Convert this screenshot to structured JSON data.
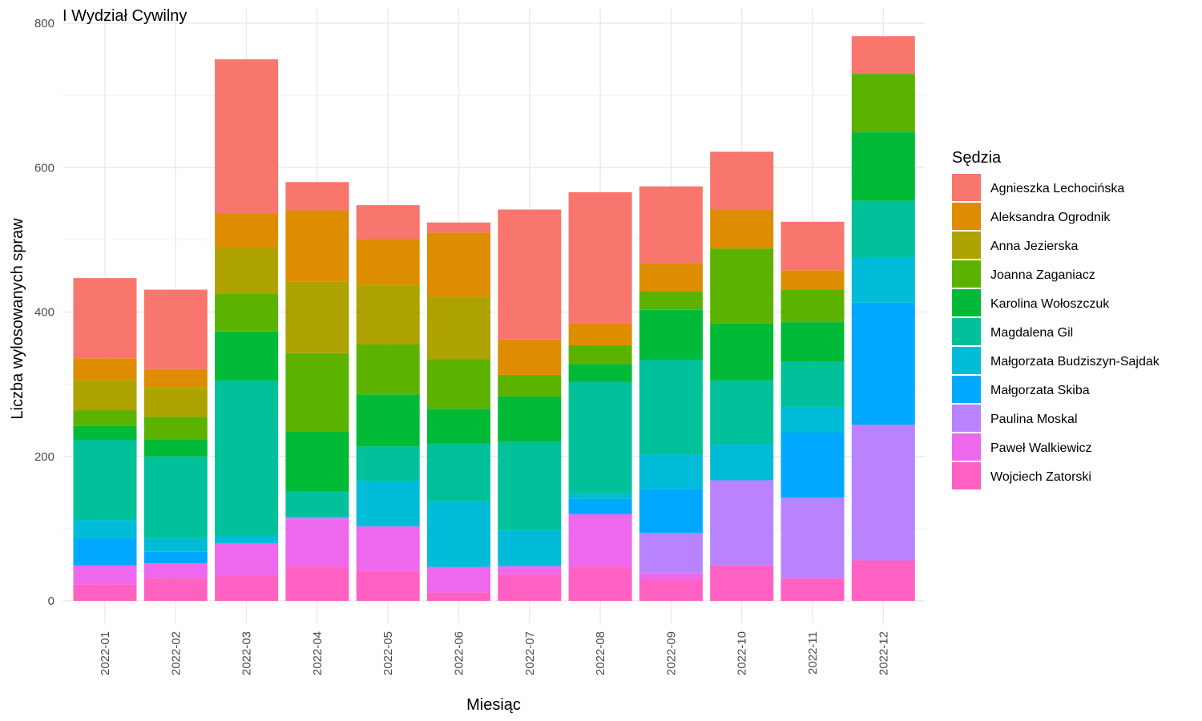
{
  "chart_data": {
    "type": "bar",
    "stacked": true,
    "title": "I Wydział Cywilny",
    "xlabel": "Miesiąc",
    "ylabel": "Liczba wylosowanych spraw",
    "ylim": [
      0,
      800
    ],
    "yticks": [
      0,
      200,
      400,
      600,
      800
    ],
    "grid": true,
    "legend_title": "Sędzia",
    "legend_position": "right",
    "categories": [
      "2022-01",
      "2022-02",
      "2022-03",
      "2022-04",
      "2022-05",
      "2022-06",
      "2022-07",
      "2022-08",
      "2022-09",
      "2022-10",
      "2022-11",
      "2022-12"
    ],
    "series": [
      {
        "name": "Wojciech Zatorski",
        "color": "#FF61C3",
        "values": [
          23,
          32,
          35,
          47,
          42,
          12,
          37,
          47,
          30,
          49,
          31,
          56
        ]
      },
      {
        "name": "Paweł Walkiewicz",
        "color": "#ED68ED",
        "values": [
          26,
          20,
          45,
          66,
          61,
          35,
          11,
          73,
          8,
          0,
          0,
          0
        ]
      },
      {
        "name": "Paulina Moskal",
        "color": "#B983FF",
        "values": [
          0,
          0,
          0,
          3,
          0,
          0,
          0,
          0,
          56,
          118,
          112,
          188
        ]
      },
      {
        "name": "Małgorzata Skiba",
        "color": "#00A9FF",
        "values": [
          38,
          16,
          0,
          0,
          0,
          0,
          0,
          21,
          61,
          0,
          90,
          169
        ]
      },
      {
        "name": "Małgorzata Budziszyn-Sajdak",
        "color": "#00BCD8",
        "values": [
          25,
          19,
          11,
          0,
          63,
          91,
          50,
          7,
          48,
          50,
          36,
          63
        ]
      },
      {
        "name": "Magdalena Gil",
        "color": "#00C19A",
        "values": [
          111,
          113,
          214,
          35,
          48,
          80,
          122,
          155,
          131,
          88,
          62,
          78
        ]
      },
      {
        "name": "Karolina Wołoszczuk",
        "color": "#00BA38",
        "values": [
          19,
          23,
          68,
          84,
          72,
          48,
          63,
          25,
          69,
          79,
          55,
          95
        ]
      },
      {
        "name": "Joanna Zaganiacz",
        "color": "#5BB300",
        "values": [
          22,
          32,
          52,
          108,
          69,
          69,
          30,
          26,
          26,
          104,
          45,
          81
        ]
      },
      {
        "name": "Anna Jezierska",
        "color": "#ADA200",
        "values": [
          42,
          40,
          64,
          99,
          83,
          86,
          0,
          0,
          0,
          0,
          0,
          0
        ]
      },
      {
        "name": "Aleksandra Ogrodnik",
        "color": "#DE8C00",
        "values": [
          30,
          26,
          48,
          99,
          63,
          89,
          49,
          30,
          39,
          54,
          27,
          0
        ]
      },
      {
        "name": "Agnieszka Lechocińska",
        "color": "#F8766D",
        "values": [
          111,
          110,
          213,
          39,
          47,
          14,
          180,
          182,
          106,
          80,
          67,
          52
        ]
      }
    ]
  }
}
